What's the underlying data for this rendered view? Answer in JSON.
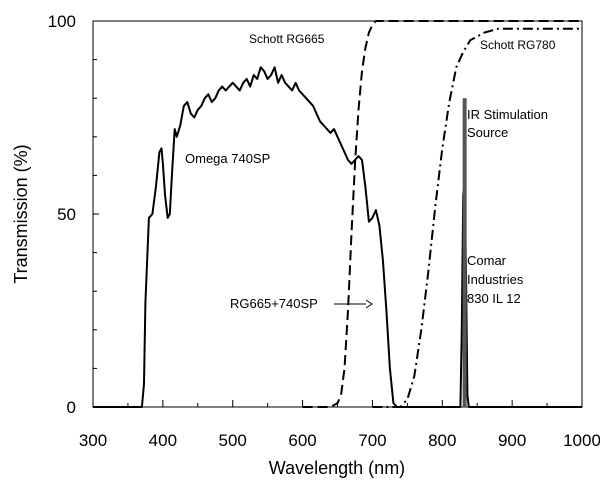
{
  "chart_data": {
    "type": "line",
    "xlabel": "Wavelength (nm)",
    "ylabel": "Transmission (%)",
    "xlim": [
      300,
      1000
    ],
    "ylim": [
      0,
      100
    ],
    "x_ticks": [
      300,
      400,
      500,
      600,
      700,
      800,
      900,
      1000
    ],
    "y_ticks": [
      0,
      50,
      100
    ],
    "grid": false,
    "legend": "none",
    "series": [
      {
        "name": "Omega 740SP",
        "style": "solid",
        "x": [
          300,
          370,
          373,
          375,
          380,
          385,
          390,
          395,
          398,
          400,
          403,
          407,
          410,
          413,
          417,
          420,
          425,
          430,
          435,
          440,
          445,
          450,
          455,
          460,
          465,
          470,
          475,
          480,
          485,
          490,
          495,
          500,
          505,
          510,
          515,
          520,
          525,
          530,
          535,
          540,
          545,
          550,
          555,
          560,
          565,
          570,
          575,
          580,
          585,
          590,
          595,
          600,
          605,
          610,
          615,
          620,
          625,
          630,
          635,
          640,
          645,
          650,
          655,
          660,
          665,
          670,
          675,
          680,
          685,
          690,
          695,
          700,
          705,
          710,
          715,
          720,
          725,
          730,
          735,
          740,
          745,
          750,
          760,
          780,
          800,
          826,
          828,
          830,
          832,
          834,
          836,
          838,
          840,
          850,
          900,
          1000
        ],
        "y": [
          0,
          0,
          6,
          27,
          49,
          50,
          57,
          66,
          67,
          63,
          55,
          49,
          50,
          60,
          72,
          70,
          73,
          78,
          79,
          76,
          75,
          77,
          78,
          80,
          81,
          79,
          80,
          82,
          83,
          82,
          83,
          84,
          83,
          82,
          84,
          85,
          83,
          86,
          85,
          88,
          87,
          85,
          86,
          88,
          84,
          86,
          84,
          83,
          82,
          84,
          82,
          81,
          80,
          79,
          78,
          76,
          74,
          73,
          72,
          71,
          72,
          70,
          68,
          66,
          64,
          63,
          64,
          65,
          64,
          57,
          48,
          49,
          51,
          47,
          38,
          25,
          10,
          1,
          0,
          0,
          0,
          0,
          0,
          0,
          0,
          0,
          20,
          55,
          58,
          35,
          3,
          0,
          0,
          0,
          0,
          0
        ]
      },
      {
        "name": "Schott RG665",
        "style": "dashed",
        "x": [
          600,
          640,
          650,
          655,
          660,
          665,
          670,
          675,
          680,
          685,
          690,
          695,
          700,
          705,
          710,
          1000
        ],
        "y": [
          0,
          0,
          1,
          3,
          10,
          25,
          45,
          63,
          77,
          87,
          93,
          97,
          99,
          100,
          100,
          100
        ]
      },
      {
        "name": "Schott RG780",
        "style": "dash-dot",
        "x": [
          700,
          740,
          750,
          760,
          770,
          780,
          790,
          800,
          810,
          820,
          830,
          840,
          850,
          860,
          870,
          880,
          890,
          900,
          950,
          1000
        ],
        "y": [
          0,
          0,
          2,
          8,
          20,
          35,
          52,
          67,
          79,
          88,
          92,
          95,
          96,
          97,
          97.5,
          98,
          98,
          98,
          98,
          98
        ]
      }
    ],
    "bars": [
      {
        "name": "IR Stimulation Source",
        "x": 832,
        "y": 80,
        "color": "#555555"
      }
    ],
    "annotations": [
      {
        "text": "Schott RG665"
      },
      {
        "text": "Schott RG780"
      },
      {
        "text": "IR Stimulation Source"
      },
      {
        "text": "Omega 740SP"
      },
      {
        "text": "RG665+740SP"
      },
      {
        "text": "Comar Industries 830 IL 12"
      }
    ]
  }
}
